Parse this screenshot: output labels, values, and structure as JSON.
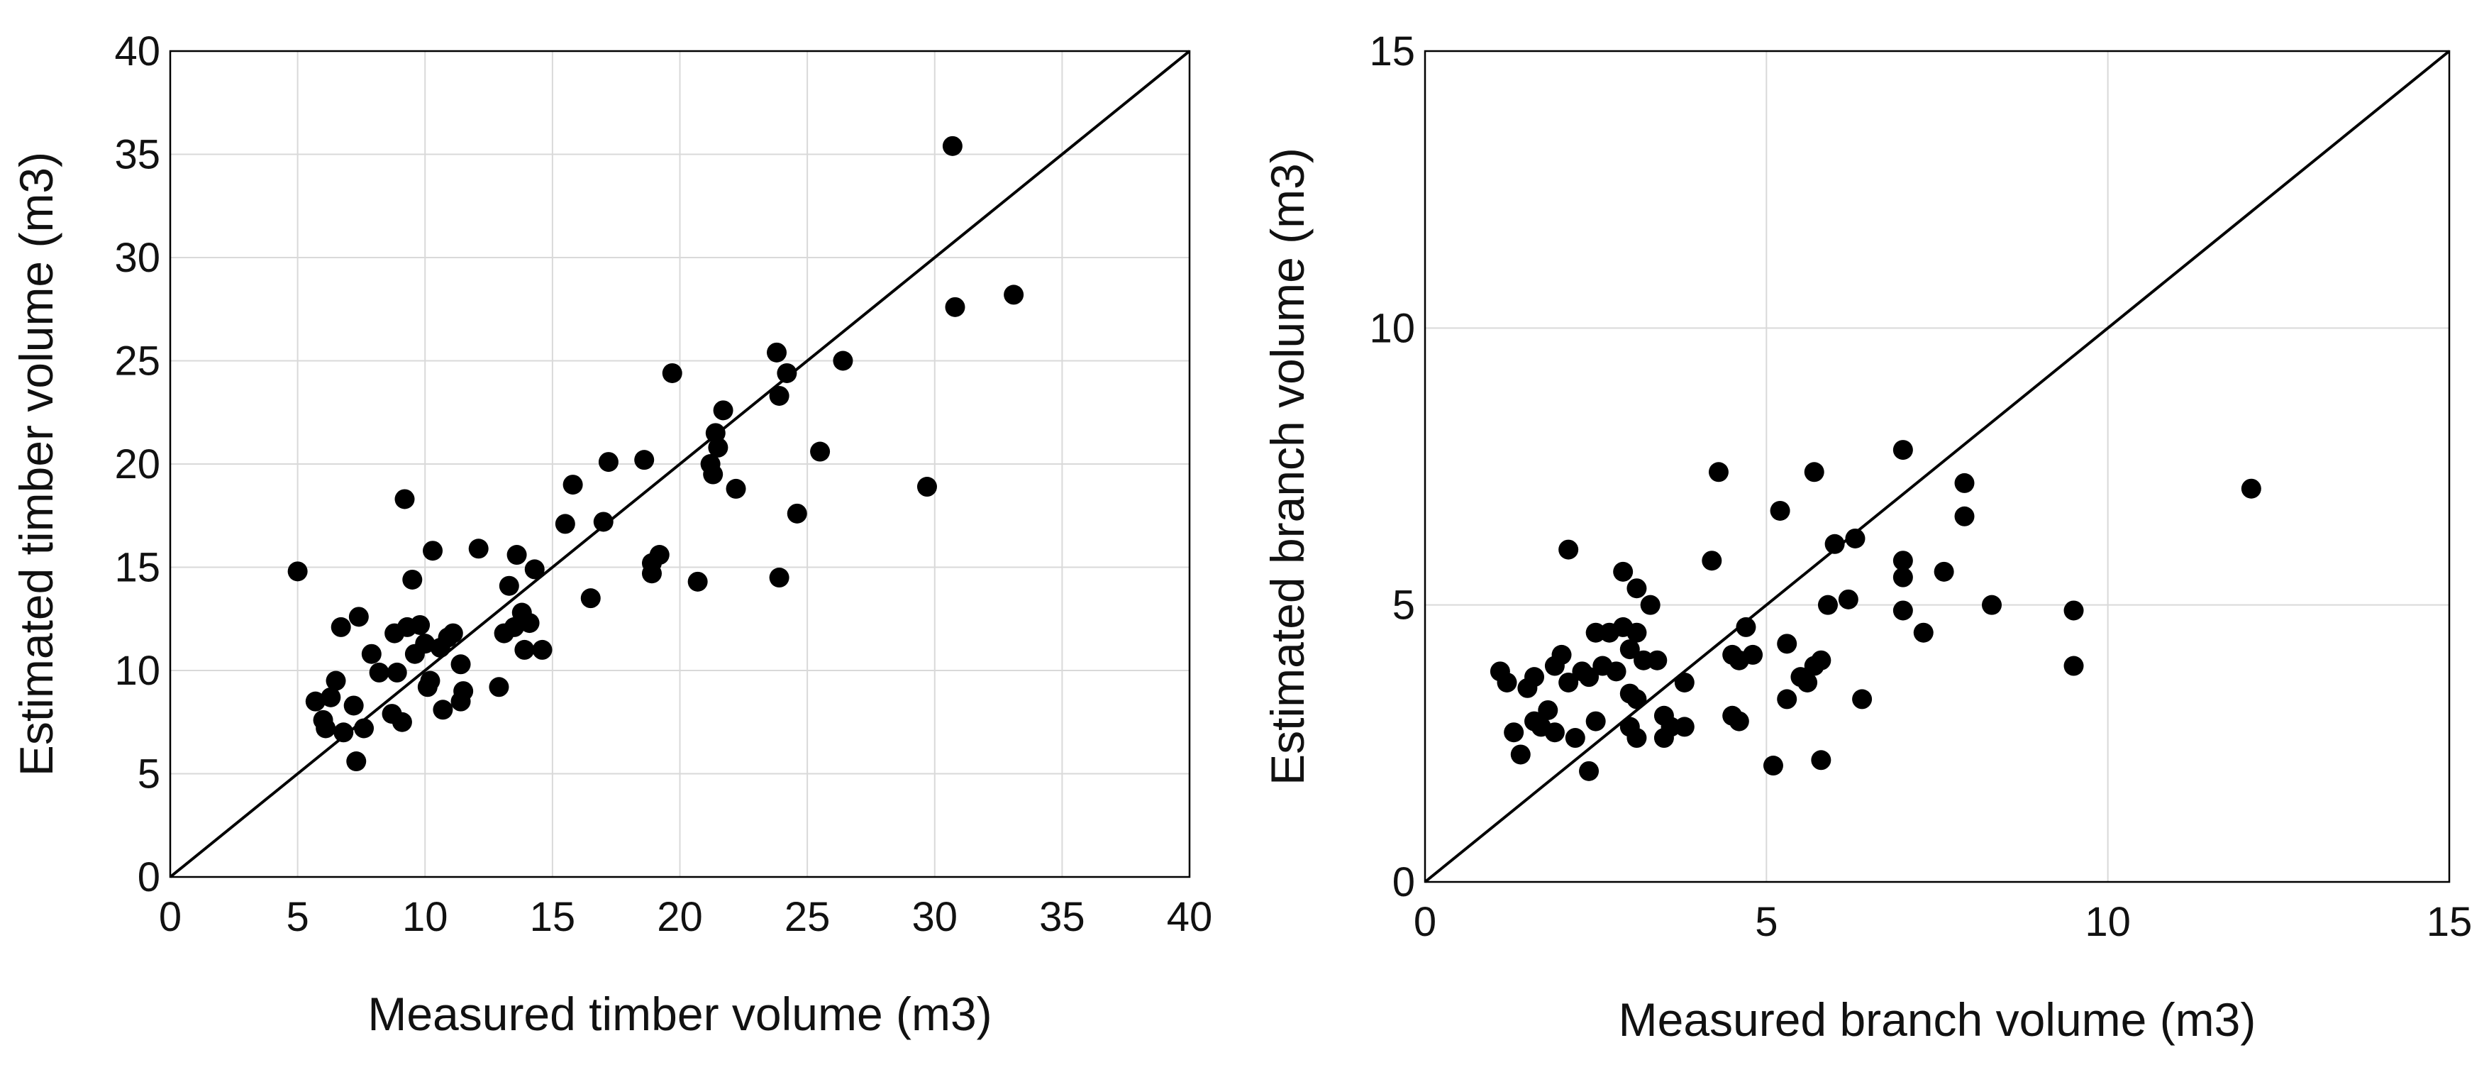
{
  "chart_data": [
    {
      "type": "scatter",
      "id": "timber",
      "xlabel": "Measured timber volume (m3)",
      "ylabel": "Estimated timber volume (m3)",
      "xlim": [
        0,
        40
      ],
      "ylim": [
        0,
        40
      ],
      "xticks": [
        0,
        5,
        10,
        15,
        20,
        25,
        30,
        35,
        40
      ],
      "yticks": [
        0,
        5,
        10,
        15,
        20,
        25,
        30,
        35,
        40
      ],
      "grid": true,
      "reference_line": "1:1",
      "series": [
        {
          "name": "timber",
          "points": [
            [
              5.0,
              14.8
            ],
            [
              5.7,
              8.5
            ],
            [
              6.0,
              7.6
            ],
            [
              6.1,
              7.2
            ],
            [
              6.3,
              8.7
            ],
            [
              6.5,
              9.5
            ],
            [
              6.7,
              12.1
            ],
            [
              6.8,
              7.0
            ],
            [
              7.2,
              8.3
            ],
            [
              7.3,
              5.6
            ],
            [
              7.4,
              12.6
            ],
            [
              7.6,
              7.2
            ],
            [
              7.9,
              10.8
            ],
            [
              8.2,
              9.9
            ],
            [
              8.7,
              7.9
            ],
            [
              8.8,
              11.8
            ],
            [
              8.9,
              9.9
            ],
            [
              9.1,
              7.5
            ],
            [
              9.2,
              18.3
            ],
            [
              9.3,
              12.1
            ],
            [
              9.5,
              14.4
            ],
            [
              9.6,
              10.8
            ],
            [
              9.8,
              12.2
            ],
            [
              10.0,
              11.3
            ],
            [
              10.1,
              9.2
            ],
            [
              10.2,
              9.5
            ],
            [
              10.3,
              15.8
            ],
            [
              10.6,
              11.1
            ],
            [
              10.7,
              8.1
            ],
            [
              10.9,
              11.6
            ],
            [
              11.1,
              11.8
            ],
            [
              11.4,
              8.5
            ],
            [
              11.4,
              10.3
            ],
            [
              11.5,
              9.0
            ],
            [
              12.1,
              15.9
            ],
            [
              12.9,
              9.2
            ],
            [
              13.1,
              11.8
            ],
            [
              13.3,
              14.1
            ],
            [
              13.5,
              12.1
            ],
            [
              13.6,
              15.6
            ],
            [
              13.8,
              12.8
            ],
            [
              13.9,
              11.0
            ],
            [
              14.1,
              12.3
            ],
            [
              14.3,
              14.9
            ],
            [
              14.6,
              11.0
            ],
            [
              15.5,
              17.1
            ],
            [
              15.8,
              19.0
            ],
            [
              16.5,
              13.5
            ],
            [
              17.0,
              17.2
            ],
            [
              17.2,
              20.1
            ],
            [
              18.6,
              20.2
            ],
            [
              18.9,
              14.7
            ],
            [
              18.9,
              15.2
            ],
            [
              19.2,
              15.6
            ],
            [
              19.7,
              24.4
            ],
            [
              20.7,
              14.3
            ],
            [
              21.2,
              20.0
            ],
            [
              21.3,
              19.5
            ],
            [
              21.4,
              21.5
            ],
            [
              21.5,
              20.8
            ],
            [
              21.7,
              22.6
            ],
            [
              22.2,
              18.8
            ],
            [
              23.8,
              25.4
            ],
            [
              23.9,
              23.3
            ],
            [
              23.9,
              14.5
            ],
            [
              24.2,
              24.4
            ],
            [
              24.6,
              17.6
            ],
            [
              25.5,
              20.6
            ],
            [
              26.4,
              25.0
            ],
            [
              29.7,
              18.9
            ],
            [
              30.7,
              35.4
            ],
            [
              30.8,
              27.6
            ],
            [
              33.1,
              28.2
            ]
          ]
        }
      ]
    },
    {
      "type": "scatter",
      "id": "branch",
      "xlabel": "Measured branch volume (m3)",
      "ylabel": "Estimated branch volume (m3)",
      "xlim": [
        0,
        15
      ],
      "ylim": [
        0,
        15
      ],
      "xticks": [
        0,
        5,
        10,
        15
      ],
      "yticks": [
        0,
        5,
        10,
        15
      ],
      "grid": true,
      "reference_line": "1:1",
      "series": [
        {
          "name": "branch",
          "points": [
            [
              1.1,
              3.8
            ],
            [
              1.2,
              3.6
            ],
            [
              1.3,
              2.7
            ],
            [
              1.4,
              2.3
            ],
            [
              1.5,
              3.5
            ],
            [
              1.6,
              3.7
            ],
            [
              1.6,
              2.9
            ],
            [
              1.7,
              2.8
            ],
            [
              1.8,
              3.1
            ],
            [
              1.9,
              2.7
            ],
            [
              1.9,
              3.9
            ],
            [
              2.0,
              4.1
            ],
            [
              2.1,
              6.0
            ],
            [
              2.1,
              3.6
            ],
            [
              2.2,
              2.6
            ],
            [
              2.3,
              3.8
            ],
            [
              2.4,
              3.7
            ],
            [
              2.4,
              2.0
            ],
            [
              2.5,
              4.5
            ],
            [
              2.5,
              2.9
            ],
            [
              2.6,
              3.9
            ],
            [
              2.7,
              4.5
            ],
            [
              2.8,
              3.8
            ],
            [
              2.9,
              5.6
            ],
            [
              2.9,
              4.6
            ],
            [
              3.0,
              3.4
            ],
            [
              3.0,
              2.8
            ],
            [
              3.0,
              4.2
            ],
            [
              3.1,
              5.3
            ],
            [
              3.1,
              4.5
            ],
            [
              3.1,
              2.6
            ],
            [
              3.1,
              3.3
            ],
            [
              3.2,
              4.0
            ],
            [
              3.3,
              5.0
            ],
            [
              3.4,
              4.0
            ],
            [
              3.5,
              3.0
            ],
            [
              3.5,
              2.6
            ],
            [
              3.6,
              2.8
            ],
            [
              3.8,
              3.6
            ],
            [
              3.8,
              2.8
            ],
            [
              4.2,
              5.8
            ],
            [
              4.3,
              7.4
            ],
            [
              4.5,
              4.1
            ],
            [
              4.5,
              3.0
            ],
            [
              4.6,
              4.0
            ],
            [
              4.6,
              2.9
            ],
            [
              4.7,
              4.6
            ],
            [
              4.8,
              4.1
            ],
            [
              5.1,
              2.1
            ],
            [
              5.2,
              6.7
            ],
            [
              5.3,
              4.3
            ],
            [
              5.3,
              3.3
            ],
            [
              5.5,
              3.7
            ],
            [
              5.6,
              3.6
            ],
            [
              5.7,
              3.9
            ],
            [
              5.7,
              7.4
            ],
            [
              5.8,
              2.2
            ],
            [
              5.8,
              4.0
            ],
            [
              5.9,
              5.0
            ],
            [
              6.0,
              6.1
            ],
            [
              6.2,
              5.1
            ],
            [
              6.3,
              6.2
            ],
            [
              6.4,
              3.3
            ],
            [
              7.0,
              5.8
            ],
            [
              7.0,
              5.5
            ],
            [
              7.0,
              4.9
            ],
            [
              7.0,
              7.8
            ],
            [
              7.3,
              4.5
            ],
            [
              7.6,
              5.6
            ],
            [
              7.9,
              7.2
            ],
            [
              7.9,
              6.6
            ],
            [
              8.3,
              5.0
            ],
            [
              9.5,
              4.9
            ],
            [
              9.5,
              3.9
            ],
            [
              12.1,
              7.1
            ]
          ]
        }
      ]
    }
  ]
}
